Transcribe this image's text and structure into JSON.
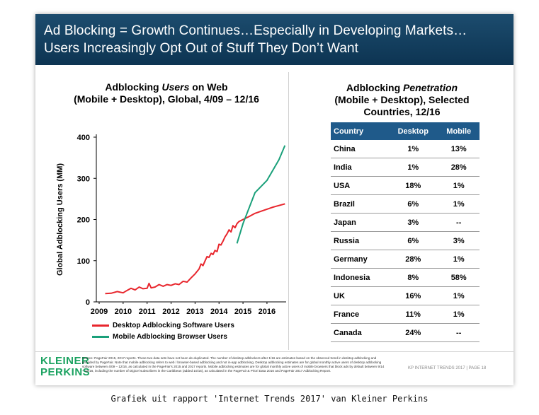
{
  "banner": {
    "line1": "Ad Blocking = Growth Continues…Especially in Developing Markets…",
    "line2": "Users Increasingly Opt Out of Stuff They Don’t Want"
  },
  "left_chart": {
    "title_pre": "Adblocking ",
    "title_em": "Users",
    "title_post": " on Web",
    "title_line2": "(Mobile + Desktop), Global, 4/09 – 12/16"
  },
  "right_table": {
    "title_pre": "Adblocking ",
    "title_em": "Penetration",
    "title_line2": "(Mobile + Desktop), Selected",
    "title_line3": "Countries, 12/16",
    "headers": [
      "Country",
      "Desktop",
      "Mobile"
    ],
    "rows": [
      [
        "China",
        "1%",
        "13%"
      ],
      [
        "India",
        "1%",
        "28%"
      ],
      [
        "USA",
        "18%",
        "1%"
      ],
      [
        "Brazil",
        "6%",
        "1%"
      ],
      [
        "Japan",
        "3%",
        "--"
      ],
      [
        "Russia",
        "6%",
        "3%"
      ],
      [
        "Germany",
        "28%",
        "1%"
      ],
      [
        "Indonesia",
        "8%",
        "58%"
      ],
      [
        "UK",
        "16%",
        "1%"
      ],
      [
        "France",
        "11%",
        "1%"
      ],
      [
        "Canada",
        "24%",
        "--"
      ]
    ]
  },
  "chart_data": {
    "type": "line",
    "title": "Adblocking Users on Web (Mobile + Desktop), Global, 4/09 – 12/16",
    "ylabel": "Global Adblocking Users (MM)",
    "xlabel": "",
    "ylim": [
      0,
      400
    ],
    "yticks": [
      0,
      100,
      200,
      300,
      400
    ],
    "xticks": [
      "2009",
      "2010",
      "2011",
      "2012",
      "2013",
      "2014",
      "2015",
      "2016"
    ],
    "grid": false,
    "legend_position": "bottom-left",
    "series": [
      {
        "name": "Desktop Adblocking Software Users",
        "color": "#e8262d",
        "x": [
          2009.25,
          2009.5,
          2009.75,
          2010.0,
          2010.17,
          2010.33,
          2010.5,
          2010.67,
          2010.83,
          2011.0,
          2011.08,
          2011.17,
          2011.33,
          2011.5,
          2011.67,
          2011.83,
          2012.0,
          2012.17,
          2012.33,
          2012.5,
          2012.67,
          2012.83,
          2013.0,
          2013.17,
          2013.25,
          2013.33,
          2013.42,
          2013.5,
          2013.58,
          2013.67,
          2013.75,
          2013.83,
          2013.92,
          2014.0,
          2014.08,
          2014.17,
          2014.25,
          2014.33,
          2014.42,
          2014.5,
          2014.58,
          2014.67,
          2014.75,
          2014.83,
          2015.0,
          2015.25,
          2015.5,
          2015.75,
          2016.0,
          2016.25,
          2016.5,
          2016.75
        ],
        "values": [
          20,
          21,
          25,
          22,
          28,
          33,
          29,
          36,
          32,
          33,
          45,
          34,
          36,
          42,
          38,
          42,
          40,
          44,
          42,
          50,
          48,
          58,
          68,
          80,
          92,
          88,
          100,
          110,
          108,
          118,
          115,
          125,
          122,
          140,
          138,
          148,
          158,
          165,
          175,
          170,
          185,
          180,
          190,
          195,
          200,
          207,
          215,
          220,
          225,
          230,
          234,
          238
        ]
      },
      {
        "name": "Mobile Adblocking Browser Users",
        "color": "#1aa07a",
        "x": [
          2014.75,
          2015.0,
          2015.5,
          2016.0,
          2016.5,
          2016.75
        ],
        "values": [
          142,
          190,
          265,
          295,
          345,
          380
        ]
      }
    ]
  },
  "footer": {
    "logo_line1": "KLEINER",
    "logo_line2": "PERKINS",
    "source": "Source: PageFair 2015, 2017 reports. These two data sets have not been de-duplicated. The number of desktop adblockers after 1/16 are estimates based on the observed trend in desktop adblocking and provided by PageFair. Note that mobile adblocking refers to web / browser-based adblocking and not in-app adblocking. Desktop adblocking estimates are for global monthly active users of desktop adblocking software between 4/09 – 12/16, as calculated in the PageFair's 2015 and 2017 reports. Mobile adblocking estimates are for global monthly active users of mobile browsers that block ads by default between 9/14 – 12/16, including the number of Digicel subscribers in the Caribbean (added 10/15), as calculated in the PageFair & Priori Data 2016 and PageFair 2017 Adblocking Report.",
    "page_label": "KP INTERNET TRENDS 2017  |  PAGE 18"
  },
  "caption": "Grafiek uit rapport 'Internet Trends 2017' van Kleiner Perkins"
}
